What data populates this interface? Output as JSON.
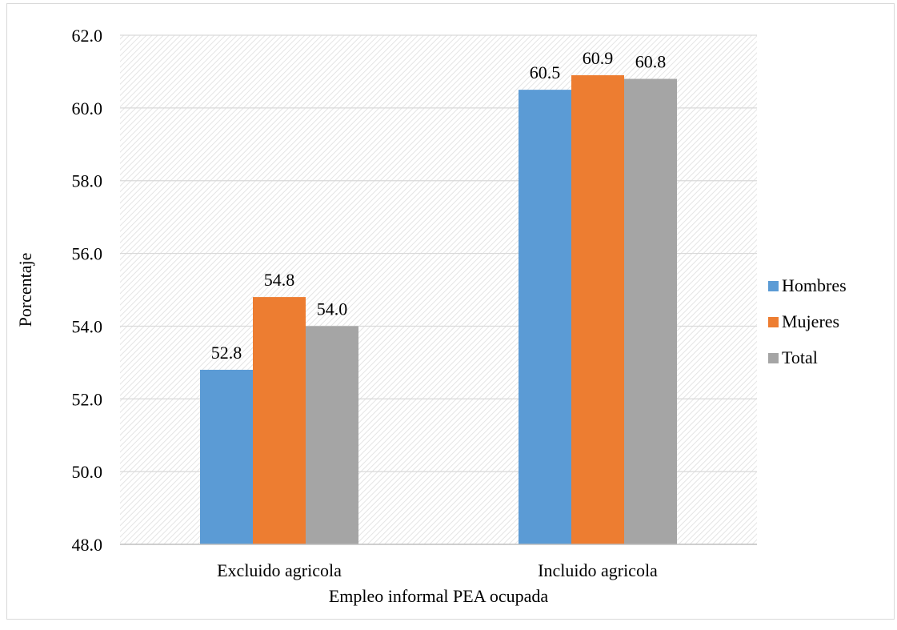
{
  "chart_data": {
    "type": "bar",
    "categories": [
      "Excluido agricola",
      "Incluido agricola"
    ],
    "series": [
      {
        "name": "Hombres",
        "values": [
          52.8,
          60.5
        ],
        "color": "#5b9bd5"
      },
      {
        "name": "Mujeres",
        "values": [
          54.8,
          60.9
        ],
        "color": "#ed7d31"
      },
      {
        "name": "Total",
        "values": [
          54.0,
          60.8
        ],
        "color": "#a5a5a5"
      }
    ],
    "data_labels": [
      [
        "52.8",
        "60.5"
      ],
      [
        "54.8",
        "60.9"
      ],
      [
        "54.0",
        "60.8"
      ]
    ],
    "ylim": [
      48.0,
      62.0
    ],
    "yticks": [
      "48.0",
      "50.0",
      "52.0",
      "54.0",
      "56.0",
      "58.0",
      "60.0",
      "62.0"
    ],
    "ytick_values": [
      48,
      50,
      52,
      54,
      56,
      58,
      60,
      62
    ],
    "xlabel": "Empleo informal PEA ocupada",
    "ylabel": "Porcentaje",
    "grid": true,
    "legend_position": "right"
  }
}
